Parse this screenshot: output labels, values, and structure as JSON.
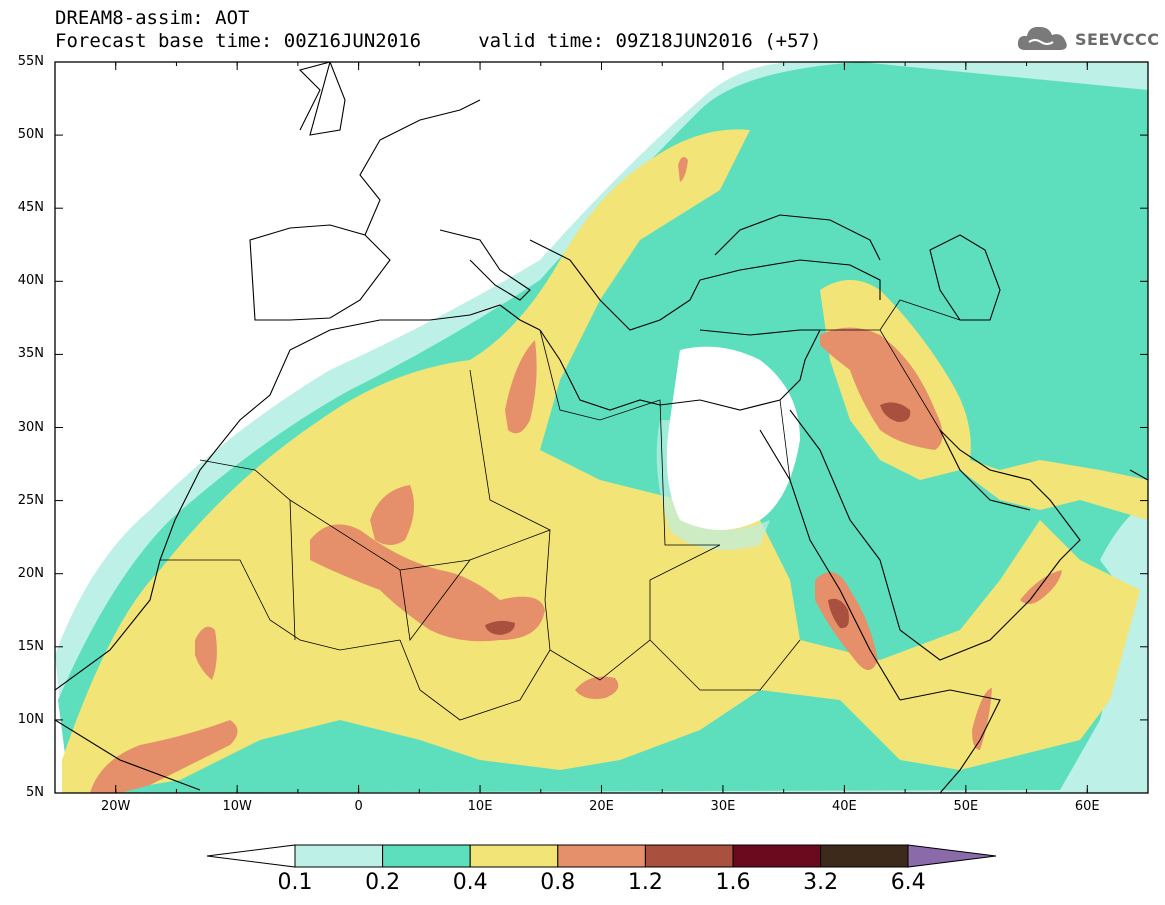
{
  "header": {
    "title": "DREAM8-assim: AOT",
    "subtitle": "Forecast base time: 00Z16JUN2016     valid time: 09Z18JUN2016 (+57)"
  },
  "logo": {
    "text": "SEEVCCC",
    "icon": "cloud-icon"
  },
  "map": {
    "lon_range": [
      -25,
      65
    ],
    "lat_range": [
      5,
      55
    ],
    "lat_labels": [
      "55N",
      "50N",
      "45N",
      "40N",
      "35N",
      "30N",
      "25N",
      "20N",
      "15N",
      "10N",
      "5N"
    ],
    "lon_labels": [
      "20W",
      "10W",
      "0",
      "10E",
      "20E",
      "30E",
      "40E",
      "50E",
      "60E"
    ]
  },
  "colorbar": {
    "labels": [
      "0.1",
      "0.2",
      "0.4",
      "0.8",
      "1.2",
      "1.6",
      "3.2",
      "6.4"
    ],
    "colors": [
      "#ffffff",
      "#bdf0e6",
      "#5ddfbd",
      "#f3e477",
      "#e5906a",
      "#a9503f",
      "#6b0a1e",
      "#3e2a1a",
      "#8a6aa8"
    ]
  },
  "colors": {
    "c1": "#bdf0e6",
    "c2": "#5ddfbd",
    "c3": "#f3e477",
    "c4": "#e5906a",
    "c5": "#a9503f",
    "c6": "#6b0a1e",
    "c7": "#3e2a1a",
    "over": "#8a6aa8"
  }
}
